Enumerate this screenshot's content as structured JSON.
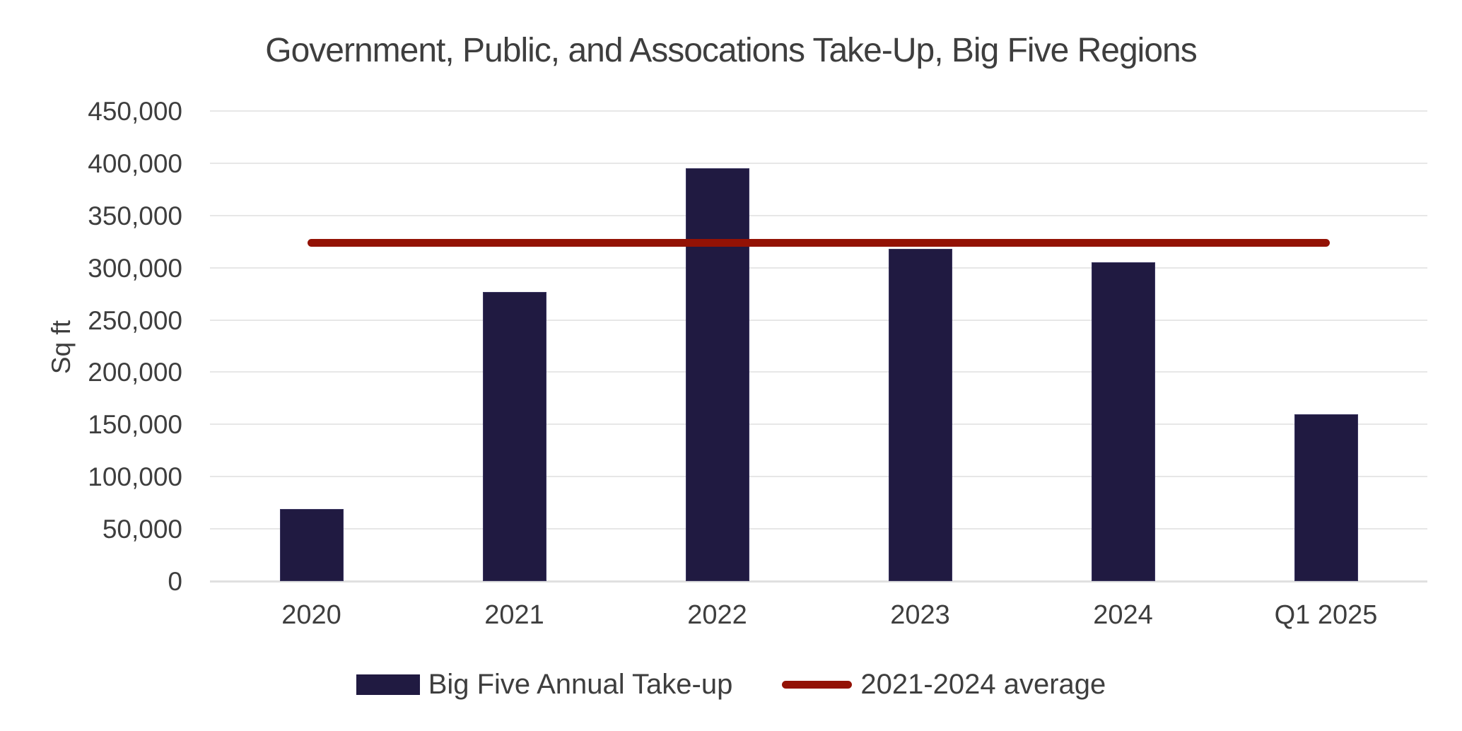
{
  "chart_data": {
    "type": "bar",
    "title": "Government, Public, and Assocations Take-Up, Big Five Regions",
    "ylabel": "Sq ft",
    "xlabel": "",
    "categories": [
      "2020",
      "2021",
      "2022",
      "2023",
      "2024",
      "Q1 2025"
    ],
    "series": [
      {
        "name": "Big Five Annual Take-up",
        "type": "bar",
        "color": "#201a41",
        "values": [
          69000,
          277000,
          395000,
          318000,
          305000,
          160000
        ]
      },
      {
        "name": "2021-2024 average",
        "type": "line",
        "color": "#931205",
        "value": 323750,
        "spans": "from first category center to last category center"
      }
    ],
    "ylim": [
      0,
      450000
    ],
    "ytick_values": [
      0,
      50000,
      100000,
      150000,
      200000,
      250000,
      300000,
      350000,
      400000,
      450000
    ],
    "ytick_labels": [
      "0",
      "50,000",
      "100,000",
      "150,000",
      "200,000",
      "250,000",
      "300,000",
      "350,000",
      "400,000",
      "450,000"
    ],
    "grid": true,
    "legend_position": "bottom",
    "colors": {
      "bar": "#201a41",
      "average_line": "#931205",
      "text": "#3e3e3e",
      "gridline": "#e7e7e7",
      "zero_axis": "#e0e0e0",
      "background": "#ffffff"
    }
  }
}
